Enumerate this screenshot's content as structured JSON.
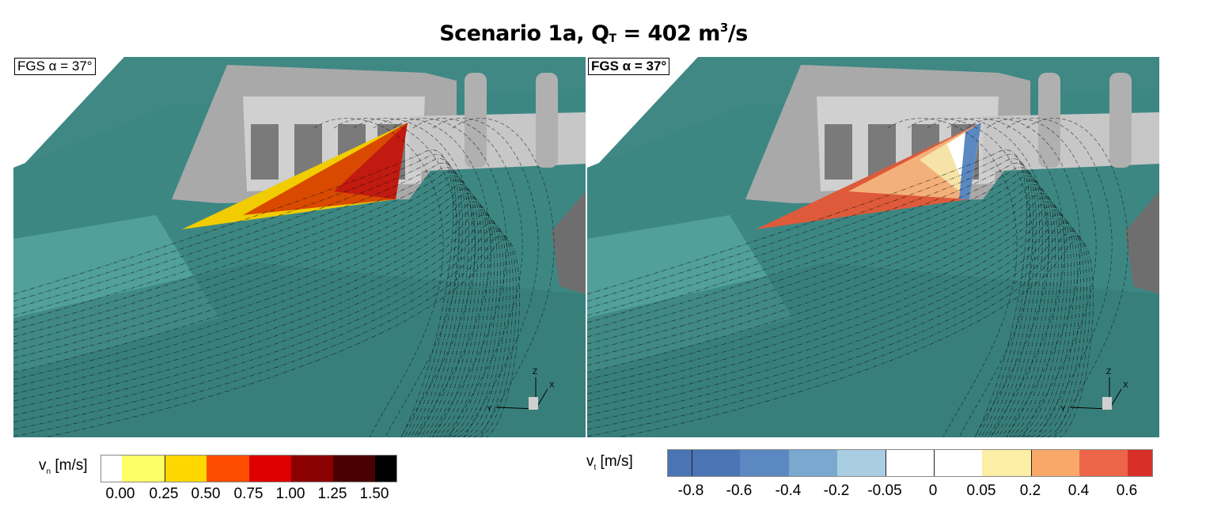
{
  "title": {
    "prefix": "Scenario 1a, Q",
    "sub": "T",
    "mid": " = 402 m",
    "sup": "3",
    "suffix": "/s"
  },
  "panels": [
    {
      "label": "FGS α = 37°",
      "field": "normal velocity",
      "triangle_colors": [
        "#f0cc00",
        "#d94a00",
        "#c21a10"
      ]
    },
    {
      "label": "FGS α = 37°",
      "field": "tangential velocity",
      "triangle_colors": [
        "#de5a3a",
        "#f4b07a",
        "#f6e3a8",
        "#ffffff",
        "#5b88c0"
      ]
    }
  ],
  "axis_triad": {
    "x": "X",
    "y": "Y",
    "z": "Z"
  },
  "colorbars": [
    {
      "title": "v",
      "title_sub": "n",
      "unit": " [m/s]",
      "ticks": [
        "0.00",
        "0.25",
        "0.50",
        "0.75",
        "1.00",
        "1.25",
        "1.50"
      ],
      "colors": [
        "#ffffff",
        "#ffff66",
        "#ffd700",
        "#ff4d00",
        "#dd0000",
        "#8b0000",
        "#4a0000",
        "#000000"
      ]
    },
    {
      "title": "v",
      "title_sub": "t",
      "unit": " [m/s]",
      "ticks": [
        "-0.8",
        "-0.6",
        "-0.4",
        "-0.2",
        "-0.05",
        "0",
        "0.05",
        "0.2",
        "0.4",
        "0.6"
      ],
      "colors": [
        "#4a74b4",
        "#5b88c0",
        "#7aa8cf",
        "#a9cde3",
        "#ffffff",
        "#ffffff",
        "#fdeea5",
        "#f9a86a",
        "#ec6549",
        "#d73027"
      ]
    }
  ]
}
